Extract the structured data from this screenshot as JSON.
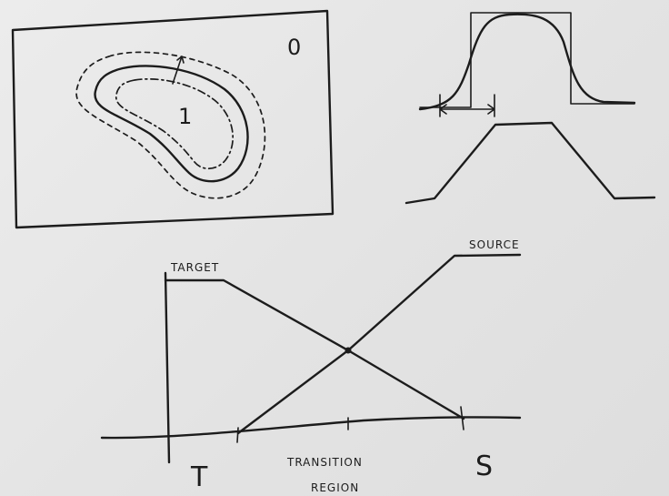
{
  "region_labels": {
    "outer": "0",
    "inner": "1"
  },
  "chart": {
    "target_label": "TARGET",
    "source_label": "SOURCE",
    "t_label": "T",
    "s_label": "S",
    "transition_line1": "TRANSITION",
    "transition_line2": "REGION"
  },
  "colors": {
    "ink": "#1c1c1c",
    "background": "#e6e6e6"
  }
}
